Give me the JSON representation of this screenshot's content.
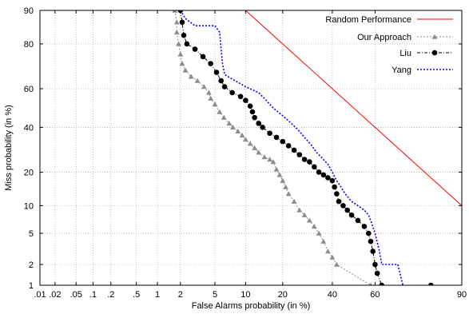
{
  "chart_data": {
    "type": "line",
    "title": "",
    "xlabel": "False Alarms probability (in %)",
    "ylabel": "Miss probability (in %)",
    "x_scale": "normal-deviate",
    "y_scale": "normal-deviate",
    "xlim": [
      0.01,
      90
    ],
    "ylim": [
      1,
      90
    ],
    "x_ticks": [
      {
        "value": 0.01,
        "label": ".01"
      },
      {
        "value": 0.02,
        "label": ".02"
      },
      {
        "value": 0.05,
        "label": ".05"
      },
      {
        "value": 0.1,
        "label": ".1"
      },
      {
        "value": 0.2,
        "label": ".2"
      },
      {
        "value": 0.5,
        "label": ".5"
      },
      {
        "value": 1,
        "label": "1"
      },
      {
        "value": 2,
        "label": "2"
      },
      {
        "value": 5,
        "label": "5"
      },
      {
        "value": 10,
        "label": "10"
      },
      {
        "value": 20,
        "label": "20"
      },
      {
        "value": 40,
        "label": "40"
      },
      {
        "value": 60,
        "label": "60"
      },
      {
        "value": 90,
        "label": "90"
      }
    ],
    "y_ticks": [
      {
        "value": 1,
        "label": "1"
      },
      {
        "value": 2,
        "label": "2"
      },
      {
        "value": 5,
        "label": "5"
      },
      {
        "value": 10,
        "label": "10"
      },
      {
        "value": 20,
        "label": "20"
      },
      {
        "value": 40,
        "label": "40"
      },
      {
        "value": 60,
        "label": "60"
      },
      {
        "value": 80,
        "label": "80"
      },
      {
        "value": 90,
        "label": "90"
      }
    ],
    "grid": true,
    "legend_position": "top-right",
    "series": [
      {
        "name": "Random Performance",
        "color": "#ff0000",
        "style": "solid",
        "marker": "none",
        "points": [
          [
            10,
            90
          ],
          [
            90,
            10
          ]
        ]
      },
      {
        "name": "Our Approach",
        "color": "#8c8c8c",
        "style": "dotted",
        "marker": "triangle",
        "points": [
          [
            1.7,
            90
          ],
          [
            1.8,
            87
          ],
          [
            1.8,
            84
          ],
          [
            1.9,
            80
          ],
          [
            2.0,
            76
          ],
          [
            2.1,
            72
          ],
          [
            2.3,
            69
          ],
          [
            2.7,
            66
          ],
          [
            3.2,
            64
          ],
          [
            3.8,
            61
          ],
          [
            4.3,
            58
          ],
          [
            4.5,
            55
          ],
          [
            5.0,
            52
          ],
          [
            5.6,
            48
          ],
          [
            6.2,
            45
          ],
          [
            7.0,
            42
          ],
          [
            7.6,
            40
          ],
          [
            8.5,
            38
          ],
          [
            9.3,
            36
          ],
          [
            10,
            34
          ],
          [
            11,
            32
          ],
          [
            12,
            30
          ],
          [
            13,
            28
          ],
          [
            14.5,
            26
          ],
          [
            16,
            25
          ],
          [
            17,
            24
          ],
          [
            18,
            21
          ],
          [
            19,
            19
          ],
          [
            20,
            17
          ],
          [
            21,
            15
          ],
          [
            22,
            13
          ],
          [
            24,
            11
          ],
          [
            26,
            9
          ],
          [
            28,
            8
          ],
          [
            30,
            7
          ],
          [
            32,
            6
          ],
          [
            34,
            5
          ],
          [
            36,
            4
          ],
          [
            38,
            3
          ],
          [
            40,
            2.5
          ],
          [
            42,
            2
          ],
          [
            58,
            1
          ]
        ]
      },
      {
        "name": "Liu",
        "color": "#000000",
        "style": "dash-dot",
        "marker": "circle",
        "points": [
          [
            2,
            90
          ],
          [
            2.1,
            87
          ],
          [
            2.2,
            83
          ],
          [
            2.4,
            80
          ],
          [
            3,
            78
          ],
          [
            3.7,
            75
          ],
          [
            4.5,
            72
          ],
          [
            5.2,
            68
          ],
          [
            5.8,
            64
          ],
          [
            6.3,
            61
          ],
          [
            7.5,
            58
          ],
          [
            9,
            56
          ],
          [
            10,
            54
          ],
          [
            11,
            51
          ],
          [
            11.5,
            48
          ],
          [
            12,
            45
          ],
          [
            13,
            42
          ],
          [
            14,
            40
          ],
          [
            16,
            37
          ],
          [
            18,
            35
          ],
          [
            20,
            33
          ],
          [
            22,
            31
          ],
          [
            24,
            29
          ],
          [
            26,
            27
          ],
          [
            28,
            25
          ],
          [
            30,
            24
          ],
          [
            32,
            22
          ],
          [
            34,
            20
          ],
          [
            36,
            19
          ],
          [
            38,
            18
          ],
          [
            40,
            17
          ],
          [
            41,
            15
          ],
          [
            42,
            13
          ],
          [
            43,
            11
          ],
          [
            45,
            10
          ],
          [
            47,
            9
          ],
          [
            49,
            8
          ],
          [
            52,
            7
          ],
          [
            55,
            6
          ],
          [
            57,
            5
          ],
          [
            58,
            4
          ],
          [
            59,
            3
          ],
          [
            60,
            2
          ],
          [
            61,
            1.5
          ],
          [
            63,
            1
          ],
          [
            82,
            1
          ]
        ]
      },
      {
        "name": "Yang",
        "color": "#0000ff",
        "style": "dotted",
        "marker": "none",
        "points": [
          [
            2,
            90
          ],
          [
            2.3,
            88
          ],
          [
            3,
            86
          ],
          [
            5,
            86
          ],
          [
            5.6,
            84
          ],
          [
            5.8,
            78
          ],
          [
            6,
            72
          ],
          [
            6.3,
            67
          ],
          [
            8,
            64
          ],
          [
            10,
            61
          ],
          [
            13,
            58
          ],
          [
            15,
            54
          ],
          [
            17,
            50
          ],
          [
            20,
            46
          ],
          [
            23,
            42
          ],
          [
            26,
            38
          ],
          [
            28,
            35
          ],
          [
            31,
            31
          ],
          [
            33,
            28
          ],
          [
            35,
            26
          ],
          [
            38,
            23
          ],
          [
            40,
            20
          ],
          [
            42,
            17
          ],
          [
            44,
            15
          ],
          [
            46,
            13
          ],
          [
            49,
            11
          ],
          [
            52,
            10
          ],
          [
            55,
            9
          ],
          [
            57,
            8
          ],
          [
            58,
            7
          ],
          [
            60,
            5
          ],
          [
            62,
            3
          ],
          [
            63,
            2
          ],
          [
            70,
            2
          ],
          [
            72,
            1
          ]
        ]
      }
    ]
  }
}
